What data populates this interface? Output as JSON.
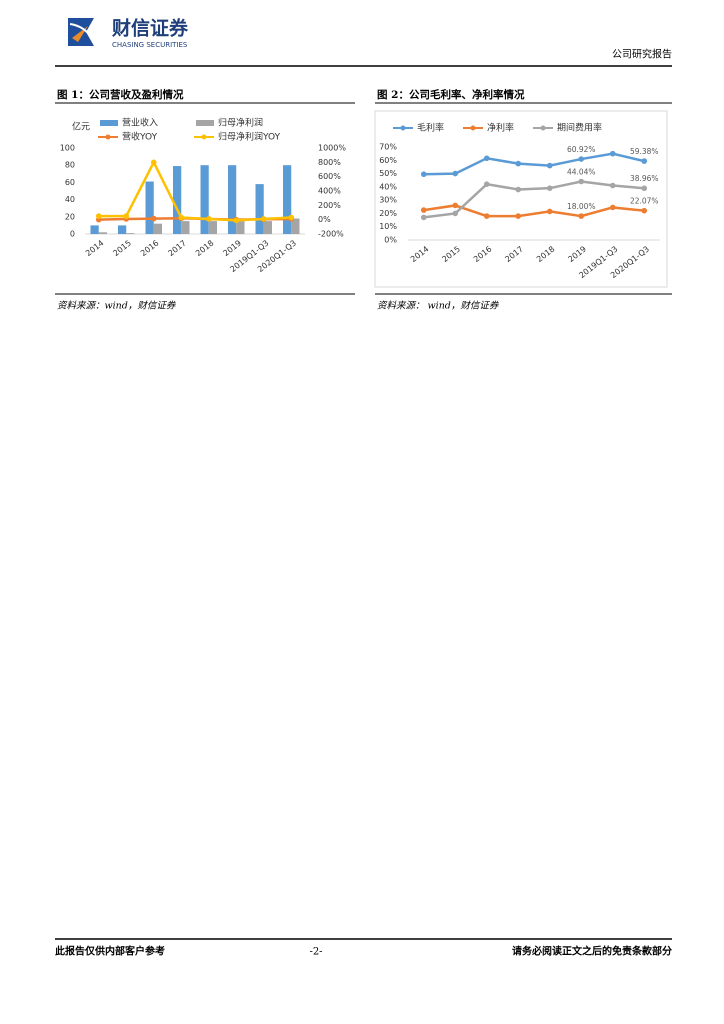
{
  "header": {
    "logo_cn": "财信证券",
    "logo_en": "CHASING SECURITIES",
    "report_type": "公司研究报告"
  },
  "captions": [
    "图 1：公司营收及盈利情况",
    "图 2：公司毛利率、净利率情况"
  ],
  "sources": [
    "资料来源：wind，财信证券",
    "资料来源： wind，财信证券"
  ],
  "footer": {
    "left": "此报告仅供内部客户参考",
    "page": "-2-",
    "right": "请务必阅读正文之后的免责条款部分"
  },
  "chart_data": [
    {
      "type": "bar_line",
      "y_label": "亿元",
      "categories": [
        "2014",
        "2015",
        "2016",
        "2017",
        "2018",
        "2019",
        "2019Q1-Q3",
        "2020Q1-Q3"
      ],
      "series": [
        {
          "name": "营业收入",
          "kind": "bar",
          "color": "#5b9bd5",
          "values": [
            10,
            10,
            61,
            79,
            80,
            80,
            58,
            80
          ]
        },
        {
          "name": "归母净利润",
          "kind": "bar",
          "color": "#a5a5a5",
          "values": [
            2,
            1,
            12,
            15,
            15,
            15,
            15,
            18
          ]
        },
        {
          "name": "营收YOY",
          "kind": "line",
          "axis": "y2",
          "color": "#ed7d31",
          "values": [
            0,
            10,
            15,
            20,
            10,
            0,
            5,
            10
          ]
        },
        {
          "name": "归母净利润YOY",
          "kind": "line",
          "axis": "y2",
          "color": "#ffc000",
          "values": [
            50,
            50,
            800,
            30,
            10,
            -10,
            10,
            30
          ]
        }
      ],
      "ylim": [
        0,
        100
      ],
      "yticks": [
        0,
        20,
        40,
        60,
        80,
        100
      ],
      "y2lim": [
        -200,
        1000
      ],
      "y2ticks": [
        {
          "value": -200,
          "label": "-200%"
        },
        {
          "value": 0,
          "label": "0%"
        },
        {
          "value": 200,
          "label": "200%"
        },
        {
          "value": 400,
          "label": "400%"
        },
        {
          "value": 600,
          "label": "600%"
        },
        {
          "value": 800,
          "label": "800%"
        },
        {
          "value": 1000,
          "label": "1000%"
        }
      ],
      "grid": false
    },
    {
      "type": "line",
      "categories": [
        "2014",
        "2015",
        "2016",
        "2017",
        "2018",
        "2019",
        "2019Q1-Q3",
        "2020Q1-Q3"
      ],
      "series": [
        {
          "name": "毛利率",
          "color": "#5b9bd5",
          "values": [
            49.5,
            50,
            61.5,
            57.5,
            56,
            60.92,
            65,
            59.38
          ],
          "value_labels": [
            null,
            null,
            null,
            null,
            null,
            "60.92%",
            null,
            "59.38%"
          ]
        },
        {
          "name": "净利率",
          "color": "#ed7d31",
          "values": [
            22.5,
            26,
            18,
            18,
            21.5,
            18.0,
            24.5,
            22.07
          ],
          "value_labels": [
            null,
            null,
            null,
            null,
            null,
            "18.00%",
            null,
            "22.07%"
          ]
        },
        {
          "name": "期间费用率",
          "color": "#a5a5a5",
          "values": [
            17,
            20,
            42,
            38,
            39,
            44.04,
            41,
            38.96
          ],
          "value_labels": [
            null,
            null,
            null,
            null,
            null,
            "44.04%",
            null,
            "38.96%"
          ]
        }
      ],
      "ylim": [
        0,
        70
      ],
      "yticks": [
        {
          "value": 0,
          "label": "0%"
        },
        {
          "value": 10,
          "label": "10%"
        },
        {
          "value": 20,
          "label": "20%"
        },
        {
          "value": 30,
          "label": "30%"
        },
        {
          "value": 40,
          "label": "40%"
        },
        {
          "value": 50,
          "label": "50%"
        },
        {
          "value": 60,
          "label": "60%"
        },
        {
          "value": 70,
          "label": "70%"
        }
      ],
      "grid": false
    }
  ]
}
